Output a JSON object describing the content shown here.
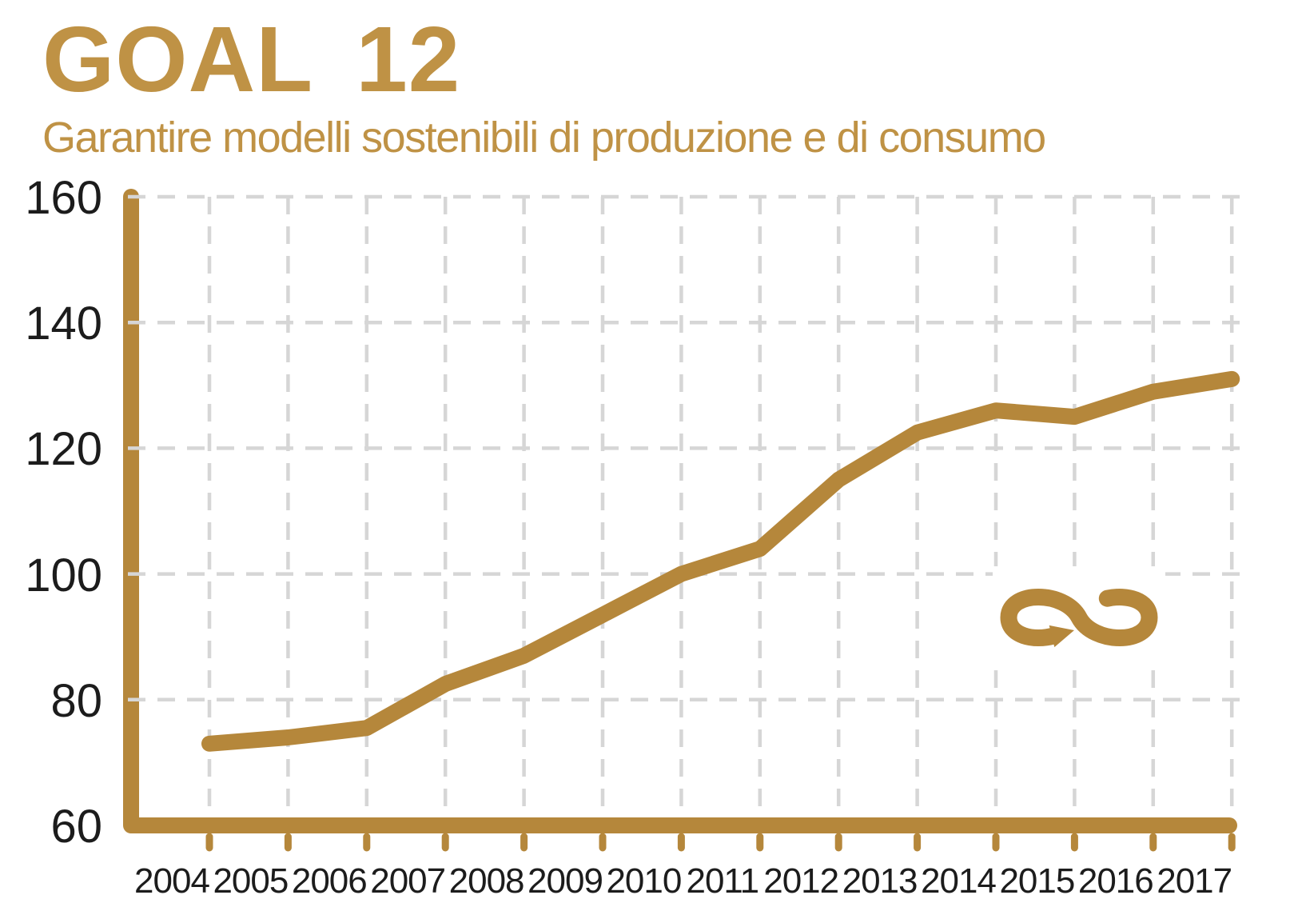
{
  "header": {
    "title": "GOAL 12",
    "subtitle": "Garantire modelli sostenibili di produzione e di consumo"
  },
  "colors": {
    "title_gold": "#BF9245",
    "chart_gold": "#B5873B",
    "gridline_gray": "#D6D6D6",
    "label_black": "#1C1C1C",
    "background": "#FFFFFF"
  },
  "icon": {
    "name": "sdg12-infinity-loop-arrow-icon",
    "color": "#B5873B"
  },
  "chart_data": {
    "type": "line",
    "title": "GOAL 12",
    "subtitle": "Garantire modelli sostenibili di produzione e di consumo",
    "categories": [
      "2004",
      "2005",
      "2006",
      "2007",
      "2008",
      "2009",
      "2010",
      "2011",
      "2012",
      "2013",
      "2014",
      "2015",
      "2016",
      "2017"
    ],
    "values": [
      73,
      74,
      75.5,
      82.5,
      87,
      93.5,
      100,
      104,
      115,
      122.5,
      126,
      125,
      129,
      131
    ],
    "xlabel": "",
    "ylabel": "",
    "ylim": [
      60,
      160
    ],
    "yticks": [
      60,
      80,
      100,
      120,
      140,
      160
    ],
    "grid": "dashed",
    "legend": "none",
    "line_color": "#B5873B",
    "line_width": 20
  }
}
